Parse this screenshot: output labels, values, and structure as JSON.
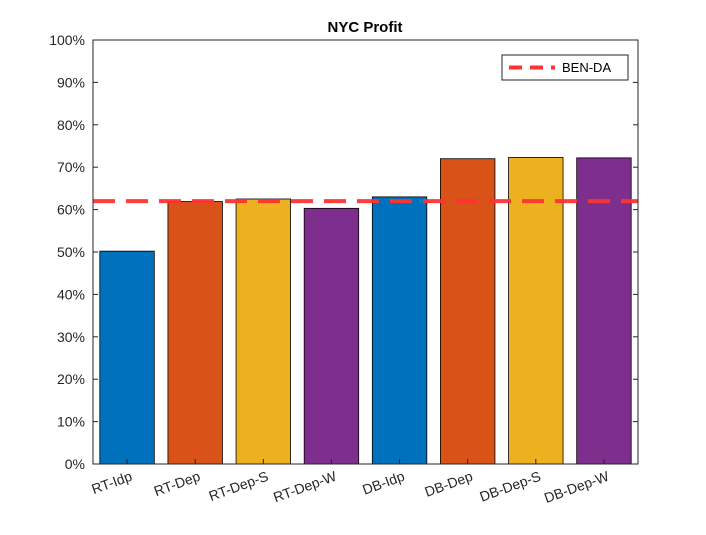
{
  "chart_data": {
    "type": "bar",
    "title": "NYC Profit",
    "xlabel": "",
    "ylabel": "",
    "categories": [
      "RT-Idp",
      "RT-Dep",
      "RT-Dep-S",
      "RT-Dep-W",
      "DB-Idp",
      "DB-Dep",
      "DB-Dep-S",
      "DB-Dep-W"
    ],
    "values": [
      50.2,
      61.9,
      62.5,
      60.3,
      63.0,
      72.0,
      72.3,
      72.2
    ],
    "bar_colors": [
      "#0072BD",
      "#D95319",
      "#EDB120",
      "#7E2F8E",
      "#0072BD",
      "#D95319",
      "#EDB120",
      "#7E2F8E"
    ],
    "ylim": [
      0,
      100
    ],
    "yticks": [
      "0%",
      "10%",
      "20%",
      "30%",
      "40%",
      "50%",
      "60%",
      "70%",
      "80%",
      "90%",
      "100%"
    ],
    "reference_line": {
      "name": "BEN-DA",
      "value": 62.0,
      "color": "#FF3333",
      "style": "dashed"
    },
    "legend": {
      "placement": "top-right"
    },
    "grid": false
  }
}
